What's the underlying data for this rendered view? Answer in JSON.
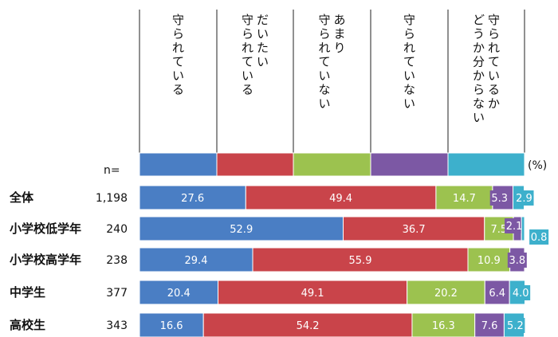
{
  "chart_data": {
    "type": "bar",
    "orientation": "horizontal",
    "stacked": true,
    "percent_stacked": true,
    "unit_label": "(%)",
    "n_label": "n=",
    "legend_placement": "top",
    "series": [
      {
        "name": "守られている",
        "color": "#4a7ec4",
        "values": [
          27.6,
          52.9,
          29.4,
          20.4,
          16.6
        ]
      },
      {
        "name": "だいたい守られている",
        "color": "#c9444a",
        "values": [
          49.4,
          36.7,
          55.9,
          49.1,
          54.2
        ]
      },
      {
        "name": "あまり守られていない",
        "color": "#9cc24f",
        "values": [
          14.7,
          7.5,
          10.9,
          20.2,
          16.3
        ]
      },
      {
        "name": "守られていない",
        "color": "#7c58a4",
        "values": [
          5.3,
          2.1,
          3.8,
          6.4,
          7.6
        ]
      },
      {
        "name": "守られているかどうか分からない",
        "color": "#3db0cc",
        "values": [
          2.9,
          0.8,
          0.0,
          4.0,
          5.2
        ]
      }
    ],
    "categories": [
      "全体",
      "小学校低学年",
      "小学校高学年",
      "中学生",
      "高校生"
    ],
    "n_values": [
      "1,198",
      "240",
      "238",
      "377",
      "343"
    ],
    "data_labels": [
      [
        "27.6",
        "49.4",
        "14.7",
        "5.3",
        "2.9"
      ],
      [
        "52.9",
        "36.7",
        "7.5",
        "2.1",
        "0.8"
      ],
      [
        "29.4",
        "55.9",
        "10.9",
        "3.8",
        ""
      ],
      [
        "20.4",
        "49.1",
        "20.2",
        "6.4",
        "4.0"
      ],
      [
        "16.6",
        "54.2",
        "16.3",
        "7.6",
        "5.2"
      ]
    ],
    "xlim": [
      0,
      100
    ]
  }
}
